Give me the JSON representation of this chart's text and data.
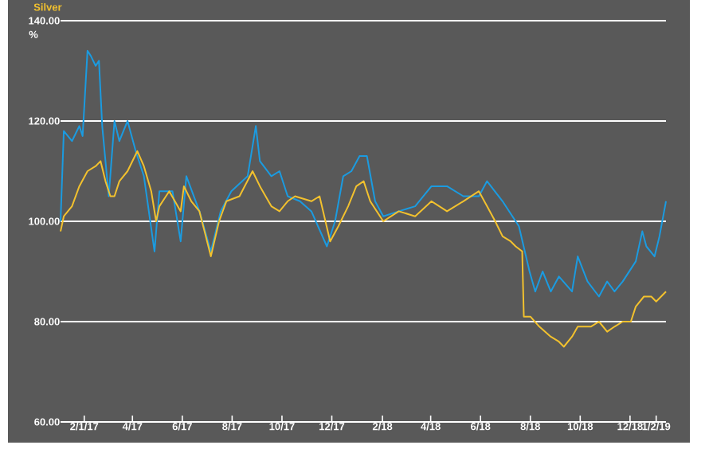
{
  "chart_data": {
    "type": "line",
    "ylabel": "%",
    "xlim": [
      "2017-01-03",
      "2019-01-14"
    ],
    "ylim": [
      60,
      140
    ],
    "xticks": [
      {
        "value": "2017-02-01",
        "label": "2/1/17"
      },
      {
        "value": "2017-04-01",
        "label": "4/17"
      },
      {
        "value": "2017-06-01",
        "label": "6/17"
      },
      {
        "value": "2017-08-01",
        "label": "8/17"
      },
      {
        "value": "2017-10-01",
        "label": "10/17"
      },
      {
        "value": "2017-12-01",
        "label": "12/17"
      },
      {
        "value": "2018-02-01",
        "label": "2/18"
      },
      {
        "value": "2018-04-01",
        "label": "4/18"
      },
      {
        "value": "2018-06-01",
        "label": "6/18"
      },
      {
        "value": "2018-08-01",
        "label": "8/18"
      },
      {
        "value": "2018-10-01",
        "label": "10/18"
      },
      {
        "value": "2018-12-01",
        "label": "12/18"
      },
      {
        "value": "2019-01-02",
        "label": "1/2/19"
      }
    ],
    "yticks": [
      {
        "value": 60,
        "label": "60.00"
      },
      {
        "value": 80,
        "label": "80.00"
      },
      {
        "value": 100,
        "label": "100.00"
      },
      {
        "value": 120,
        "label": "120.00"
      },
      {
        "value": 140,
        "label": "140.00"
      }
    ],
    "grid": "y",
    "legend": "top left",
    "marker": "none",
    "line_style": "solid",
    "series": [
      {
        "color": "#1b9be0",
        "x": [
          "2017-01-03",
          "2017-01-07",
          "2017-01-17",
          "2017-01-26",
          "2017-01-30",
          "2017-02-05",
          "2017-02-09",
          "2017-02-15",
          "2017-02-19",
          "2017-02-23",
          "2017-03-03",
          "2017-03-10",
          "2017-03-16",
          "2017-03-26",
          "2017-04-05",
          "2017-04-15",
          "2017-04-28",
          "2017-05-04",
          "2017-05-20",
          "2017-05-30",
          "2017-06-06",
          "2017-06-22",
          "2017-07-06",
          "2017-07-18",
          "2017-07-31",
          "2017-08-20",
          "2017-08-30",
          "2017-09-04",
          "2017-09-18",
          "2017-09-28",
          "2017-10-08",
          "2017-10-23",
          "2017-11-06",
          "2017-11-25",
          "2017-12-05",
          "2017-12-15",
          "2017-12-25",
          "2018-01-04",
          "2018-01-13",
          "2018-01-23",
          "2018-02-02",
          "2018-02-21",
          "2018-03-13",
          "2018-04-02",
          "2018-04-21",
          "2018-05-11",
          "2018-05-30",
          "2018-06-09",
          "2018-06-28",
          "2018-07-18",
          "2018-07-31",
          "2018-08-07",
          "2018-08-16",
          "2018-08-26",
          "2018-09-05",
          "2018-09-21",
          "2018-09-28",
          "2018-10-10",
          "2018-10-24",
          "2018-11-03",
          "2018-11-12",
          "2018-11-22",
          "2018-12-08",
          "2018-12-16",
          "2018-12-21",
          "2018-12-31",
          "2019-01-06",
          "2019-01-14"
        ],
        "values": [
          100,
          118,
          116,
          119,
          117,
          134,
          133,
          131,
          132,
          119,
          105,
          120,
          116,
          120,
          114,
          109,
          94,
          106,
          106,
          96,
          109,
          102,
          94,
          102,
          106,
          109,
          119,
          112,
          109,
          110,
          105,
          104,
          102,
          95,
          100,
          109,
          110,
          113,
          113,
          104,
          101,
          102,
          103,
          107,
          107,
          105,
          105,
          108,
          104,
          99,
          90,
          86,
          90,
          86,
          89,
          86,
          93,
          88,
          85,
          88,
          86,
          88,
          92,
          98,
          95,
          93,
          97,
          104
        ]
      },
      {
        "name": "Silver",
        "color": "#f2c12e",
        "x": [
          "2017-01-03",
          "2017-01-07",
          "2017-01-17",
          "2017-01-26",
          "2017-02-05",
          "2017-02-15",
          "2017-02-21",
          "2017-02-27",
          "2017-03-05",
          "2017-03-10",
          "2017-03-16",
          "2017-03-26",
          "2017-04-07",
          "2017-04-15",
          "2017-04-24",
          "2017-04-30",
          "2017-05-04",
          "2017-05-16",
          "2017-05-30",
          "2017-06-03",
          "2017-06-12",
          "2017-06-22",
          "2017-07-06",
          "2017-07-16",
          "2017-07-25",
          "2017-08-10",
          "2017-08-26",
          "2017-09-04",
          "2017-09-18",
          "2017-09-28",
          "2017-10-08",
          "2017-10-17",
          "2017-11-06",
          "2017-11-16",
          "2017-11-29",
          "2017-12-09",
          "2017-12-21",
          "2017-12-31",
          "2018-01-09",
          "2018-01-17",
          "2018-02-02",
          "2018-02-21",
          "2018-03-13",
          "2018-04-02",
          "2018-04-21",
          "2018-05-11",
          "2018-05-30",
          "2018-06-09",
          "2018-06-19",
          "2018-06-28",
          "2018-07-08",
          "2018-07-14",
          "2018-07-22",
          "2018-07-24",
          "2018-08-01",
          "2018-08-12",
          "2018-08-26",
          "2018-09-05",
          "2018-09-11",
          "2018-09-21",
          "2018-09-28",
          "2018-10-14",
          "2018-10-24",
          "2018-11-03",
          "2018-11-12",
          "2018-11-22",
          "2018-12-02",
          "2018-12-08",
          "2018-12-18",
          "2018-12-27",
          "2019-01-02",
          "2019-01-14"
        ],
        "values": [
          98,
          101,
          103,
          107,
          110,
          111,
          112,
          108,
          105,
          105,
          108,
          110,
          114,
          111,
          106,
          100,
          103,
          106,
          102,
          107,
          104,
          102,
          93,
          100,
          104,
          105,
          110,
          107,
          103,
          102,
          104,
          105,
          104,
          105,
          96,
          99,
          103,
          107,
          108,
          104,
          100,
          102,
          101,
          104,
          102,
          104,
          106,
          103,
          100,
          97,
          96,
          95,
          94,
          81,
          81,
          79,
          77,
          76,
          75,
          77,
          79,
          79,
          80,
          78,
          79,
          80,
          80,
          83,
          85,
          85,
          84,
          86
        ]
      }
    ]
  }
}
